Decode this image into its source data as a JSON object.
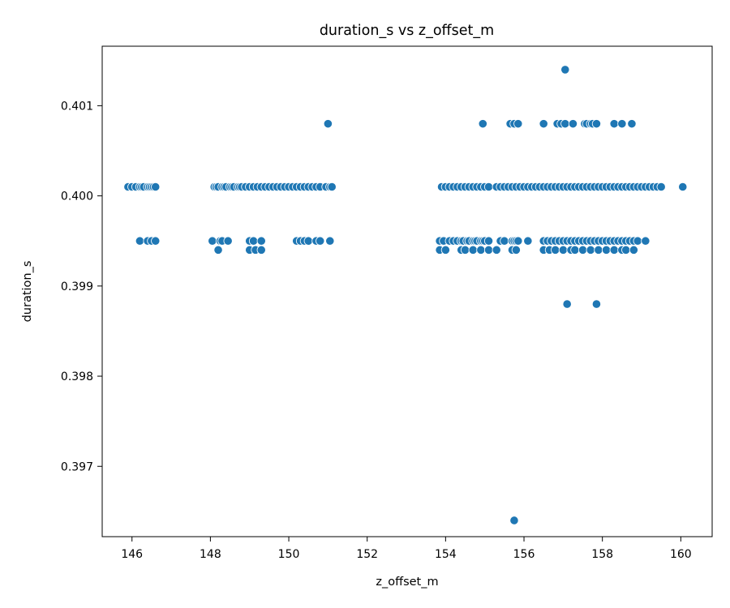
{
  "chart_data": {
    "type": "scatter",
    "title": "duration_s vs z_offset_m",
    "xlabel": "z_offset_m",
    "ylabel": "duration_s",
    "xlim": [
      145.24,
      160.8
    ],
    "ylim": [
      0.39622,
      0.40166
    ],
    "xticks": [
      146,
      148,
      150,
      152,
      154,
      156,
      158,
      160
    ],
    "yticks": [
      0.397,
      0.398,
      0.399,
      0.4,
      0.401
    ],
    "xtick_labels": [
      "146",
      "148",
      "150",
      "152",
      "154",
      "156",
      "158",
      "160"
    ],
    "ytick_labels": [
      "0.397",
      "0.398",
      "0.399",
      "0.400",
      "0.401"
    ],
    "grid": false,
    "marker_color": "#1f77b4",
    "series": [
      {
        "x": [
          145.9,
          146.0,
          146.1,
          146.2,
          146.25,
          146.3,
          146.4,
          146.45,
          146.5,
          146.55,
          146.6,
          148.1,
          148.15,
          148.2,
          148.3,
          148.35,
          148.4,
          148.5,
          148.55,
          148.6,
          148.7,
          148.75,
          148.8,
          148.9,
          149.0,
          149.1,
          149.2,
          149.3,
          149.4,
          149.5,
          149.6,
          149.7,
          149.8,
          149.9,
          150.0,
          150.1,
          150.2,
          150.3,
          150.4,
          150.5,
          150.6,
          150.7,
          150.8,
          150.95,
          151.05,
          151.1,
          153.9,
          154.0,
          154.1,
          154.2,
          154.3,
          154.4,
          154.5,
          154.6,
          154.7,
          154.8,
          154.9,
          155.0,
          155.1,
          155.3,
          155.4,
          155.5,
          155.6,
          155.7,
          155.8,
          155.9,
          156.0,
          156.1,
          156.2,
          156.3,
          156.4,
          156.5,
          156.6,
          156.7,
          156.8,
          156.9,
          157.0,
          157.1,
          157.2,
          157.3,
          157.4,
          157.5,
          157.6,
          157.7,
          157.8,
          157.9,
          158.0,
          158.1,
          158.2,
          158.3,
          158.4,
          158.5,
          158.6,
          158.7,
          158.8,
          158.9,
          159.0,
          159.1,
          159.2,
          159.3,
          159.4,
          159.5,
          160.05,
          146.2,
          146.4,
          146.5,
          146.6,
          148.05,
          148.25,
          148.3,
          148.45,
          149.0,
          149.1,
          149.3,
          150.2,
          150.3,
          150.4,
          150.5,
          150.7,
          150.8,
          151.05,
          153.85,
          153.95,
          154.1,
          154.2,
          154.3,
          154.4,
          154.45,
          154.55,
          154.6,
          154.7,
          154.75,
          154.8,
          154.9,
          154.95,
          155.0,
          155.1,
          155.4,
          155.5,
          155.7,
          155.75,
          155.8,
          155.85,
          156.1,
          156.5,
          156.6,
          156.7,
          156.8,
          156.9,
          157.0,
          157.1,
          157.2,
          157.3,
          157.4,
          157.5,
          157.6,
          157.7,
          157.8,
          157.9,
          158.0,
          158.1,
          158.2,
          158.3,
          158.4,
          158.5,
          158.6,
          158.7,
          158.8,
          158.9,
          159.1,
          148.2,
          149.0,
          149.15,
          149.3,
          153.85,
          154.0,
          154.4,
          154.5,
          154.7,
          154.9,
          155.1,
          155.3,
          155.7,
          155.8,
          156.5,
          156.65,
          156.8,
          157.0,
          157.2,
          157.3,
          157.5,
          157.7,
          157.9,
          158.1,
          158.3,
          158.5,
          158.6,
          158.8,
          151.0,
          154.95,
          155.65,
          155.75,
          155.85,
          156.5,
          156.85,
          156.95,
          157.05,
          157.25,
          157.55,
          157.6,
          157.7,
          157.75,
          157.85,
          158.3,
          158.5,
          158.75,
          157.05,
          157.1,
          157.85,
          155.75
        ],
        "y": [
          0.4001,
          0.4001,
          0.4001,
          0.4001,
          0.4001,
          0.4001,
          0.4001,
          0.4001,
          0.4001,
          0.4001,
          0.4001,
          0.4001,
          0.4001,
          0.4001,
          0.4001,
          0.4001,
          0.4001,
          0.4001,
          0.4001,
          0.4001,
          0.4001,
          0.4001,
          0.4001,
          0.4001,
          0.4001,
          0.4001,
          0.4001,
          0.4001,
          0.4001,
          0.4001,
          0.4001,
          0.4001,
          0.4001,
          0.4001,
          0.4001,
          0.4001,
          0.4001,
          0.4001,
          0.4001,
          0.4001,
          0.4001,
          0.4001,
          0.4001,
          0.4001,
          0.4001,
          0.4001,
          0.4001,
          0.4001,
          0.4001,
          0.4001,
          0.4001,
          0.4001,
          0.4001,
          0.4001,
          0.4001,
          0.4001,
          0.4001,
          0.4001,
          0.4001,
          0.4001,
          0.4001,
          0.4001,
          0.4001,
          0.4001,
          0.4001,
          0.4001,
          0.4001,
          0.4001,
          0.4001,
          0.4001,
          0.4001,
          0.4001,
          0.4001,
          0.4001,
          0.4001,
          0.4001,
          0.4001,
          0.4001,
          0.4001,
          0.4001,
          0.4001,
          0.4001,
          0.4001,
          0.4001,
          0.4001,
          0.4001,
          0.4001,
          0.4001,
          0.4001,
          0.4001,
          0.4001,
          0.4001,
          0.4001,
          0.4001,
          0.4001,
          0.4001,
          0.4001,
          0.4001,
          0.4001,
          0.4001,
          0.4001,
          0.4001,
          0.4001,
          0.3995,
          0.3995,
          0.3995,
          0.3995,
          0.3995,
          0.3995,
          0.3995,
          0.3995,
          0.3995,
          0.3995,
          0.3995,
          0.3995,
          0.3995,
          0.3995,
          0.3995,
          0.3995,
          0.3995,
          0.3995,
          0.3995,
          0.3995,
          0.3995,
          0.3995,
          0.3995,
          0.3995,
          0.3995,
          0.3995,
          0.3995,
          0.3995,
          0.3995,
          0.3995,
          0.3995,
          0.3995,
          0.3995,
          0.3995,
          0.3995,
          0.3995,
          0.3995,
          0.3995,
          0.3995,
          0.3995,
          0.3995,
          0.3995,
          0.3995,
          0.3995,
          0.3995,
          0.3995,
          0.3995,
          0.3995,
          0.3995,
          0.3995,
          0.3995,
          0.3995,
          0.3995,
          0.3995,
          0.3995,
          0.3995,
          0.3995,
          0.3995,
          0.3995,
          0.3995,
          0.3995,
          0.3995,
          0.3995,
          0.3995,
          0.3995,
          0.3995,
          0.3995,
          0.3994,
          0.3994,
          0.3994,
          0.3994,
          0.3994,
          0.3994,
          0.3994,
          0.3994,
          0.3994,
          0.3994,
          0.3994,
          0.3994,
          0.3994,
          0.3994,
          0.3994,
          0.3994,
          0.3994,
          0.3994,
          0.3994,
          0.3994,
          0.3994,
          0.3994,
          0.3994,
          0.3994,
          0.3994,
          0.3994,
          0.3994,
          0.3994,
          0.4008,
          0.4008,
          0.4008,
          0.4008,
          0.4008,
          0.4008,
          0.4008,
          0.4008,
          0.4008,
          0.4008,
          0.4008,
          0.4008,
          0.4008,
          0.4008,
          0.4008,
          0.4008,
          0.4008,
          0.4008,
          0.4014,
          0.3988,
          0.3988,
          0.3964
        ]
      }
    ]
  }
}
